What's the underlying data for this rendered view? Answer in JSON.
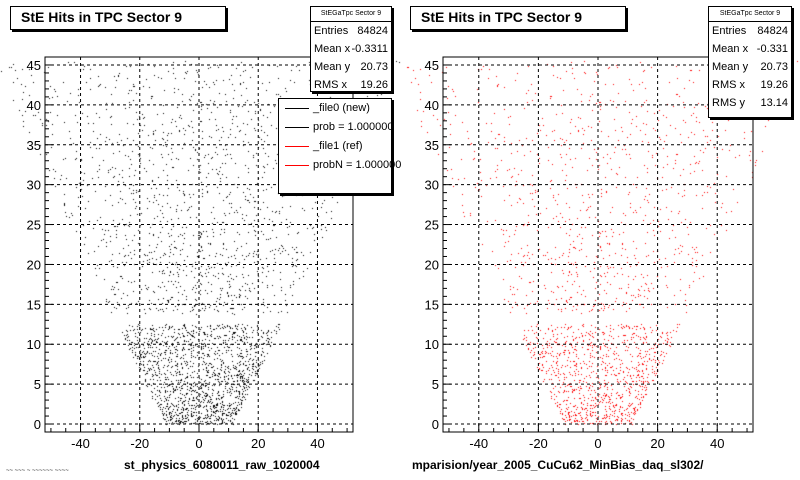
{
  "chart_data": [
    {
      "type": "scatter",
      "title": "StE Hits in TPC Sector 9",
      "xlabel": "st_physics_6080011_raw_1020004",
      "ylabel": "",
      "xlim": [
        -52,
        52
      ],
      "ylim": [
        -1,
        46
      ],
      "xticks": [
        -40,
        -20,
        0,
        20,
        40
      ],
      "yticks": [
        0,
        5,
        10,
        15,
        20,
        25,
        30,
        35,
        40,
        45
      ],
      "grid": true,
      "marker_color": "#000000",
      "stats": {
        "header": "StEGaTpc Sector 9",
        "rows": [
          {
            "label": "Entries",
            "value": "84824"
          },
          {
            "label": "Mean x",
            "value": "-0.3311"
          },
          {
            "label": "Mean y",
            "value": "20.73"
          },
          {
            "label": "RMS x",
            "value": "19.26"
          }
        ]
      },
      "legend": {
        "placement": "top-right",
        "entries": [
          {
            "label": "_file0 (new)",
            "color": "#000000"
          },
          {
            "label": "prob = 1.000000",
            "color": "#000000"
          },
          {
            "label": "_file1 (ref)",
            "color": "#ff0000"
          },
          {
            "label": "probN = 1.000000",
            "color": "#ff0000"
          }
        ]
      }
    },
    {
      "type": "scatter",
      "title": "StE Hits in TPC Sector 9",
      "xlabel": "mparision/year_2005_CuCu62_MinBias_daq_sl302/",
      "ylabel": "",
      "xlim": [
        -52,
        52
      ],
      "ylim": [
        -1,
        46
      ],
      "xticks": [
        -40,
        -20,
        0,
        20,
        40
      ],
      "yticks": [
        0,
        5,
        10,
        15,
        20,
        25,
        30,
        35,
        40,
        45
      ],
      "grid": true,
      "marker_color": "#ff0000",
      "stats": {
        "header": "StEGaTpc Sector 9",
        "rows": [
          {
            "label": "Entries",
            "value": "84824"
          },
          {
            "label": "Mean x",
            "value": "-0.331"
          },
          {
            "label": "Mean y",
            "value": "20.73"
          },
          {
            "label": "RMS x",
            "value": "19.26"
          },
          {
            "label": "RMS y",
            "value": "13.14"
          }
        ]
      }
    }
  ],
  "footnote": "~~ ~~~ ~ ~~~~~~ ~~~~"
}
